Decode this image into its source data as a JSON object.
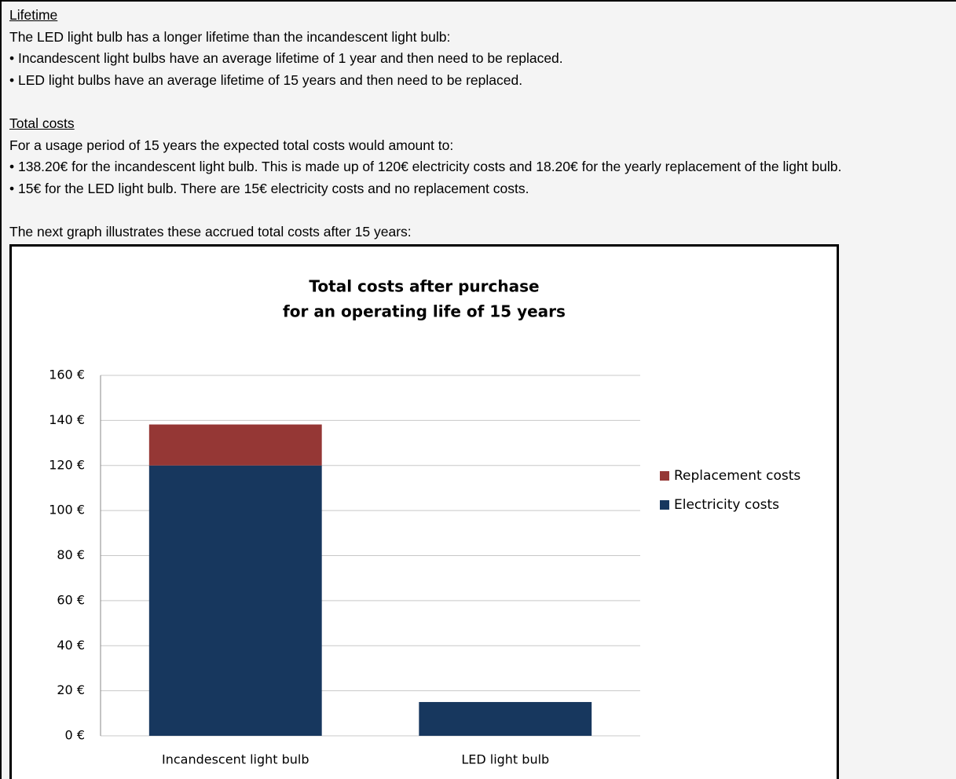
{
  "sections": [
    {
      "heading": "Lifetime",
      "lines": [
        "The LED light bulb has a longer lifetime than the incandescent light bulb:",
        "• Incandescent light bulbs have an average lifetime of 1 year and then need to be replaced.",
        "• LED light bulbs have an average lifetime of 15 years and then need to be replaced."
      ]
    },
    {
      "heading": "Total costs",
      "lines": [
        "For a usage period of 15 years the expected total costs would amount to:",
        "• 138.20€ for the incandescent light bulb. This is made up of 120€ electricity costs and 18.20€ for the yearly replacement of the light bulb.",
        "• 15€ for the LED light bulb. There are 15€ electricity costs and no replacement costs."
      ]
    }
  ],
  "graph_intro": "The next graph illustrates these accrued total costs after 15 years:",
  "chart_data": {
    "type": "stacked_bar",
    "title": [
      "Total costs after purchase",
      "for an operating life of 15 years"
    ],
    "categories": [
      "Incandescent light bulb",
      "LED light bulb"
    ],
    "series": [
      {
        "name": "Electricity costs",
        "color": "#17375e",
        "values": [
          120,
          15
        ]
      },
      {
        "name": "Replacement costs",
        "color": "#953735",
        "values": [
          18.2,
          0
        ]
      }
    ],
    "ylim": [
      0,
      160
    ],
    "yticks": [
      {
        "value": 0,
        "label": "0 €"
      },
      {
        "value": 20,
        "label": "20 €"
      },
      {
        "value": 40,
        "label": "40 €"
      },
      {
        "value": 60,
        "label": "60 €"
      },
      {
        "value": 80,
        "label": "80 €"
      },
      {
        "value": 100,
        "label": "100 €"
      },
      {
        "value": 120,
        "label": "120 €"
      },
      {
        "value": 140,
        "label": "140 €"
      },
      {
        "value": 160,
        "label": "160 €"
      }
    ],
    "grid": true,
    "legend": "right"
  }
}
